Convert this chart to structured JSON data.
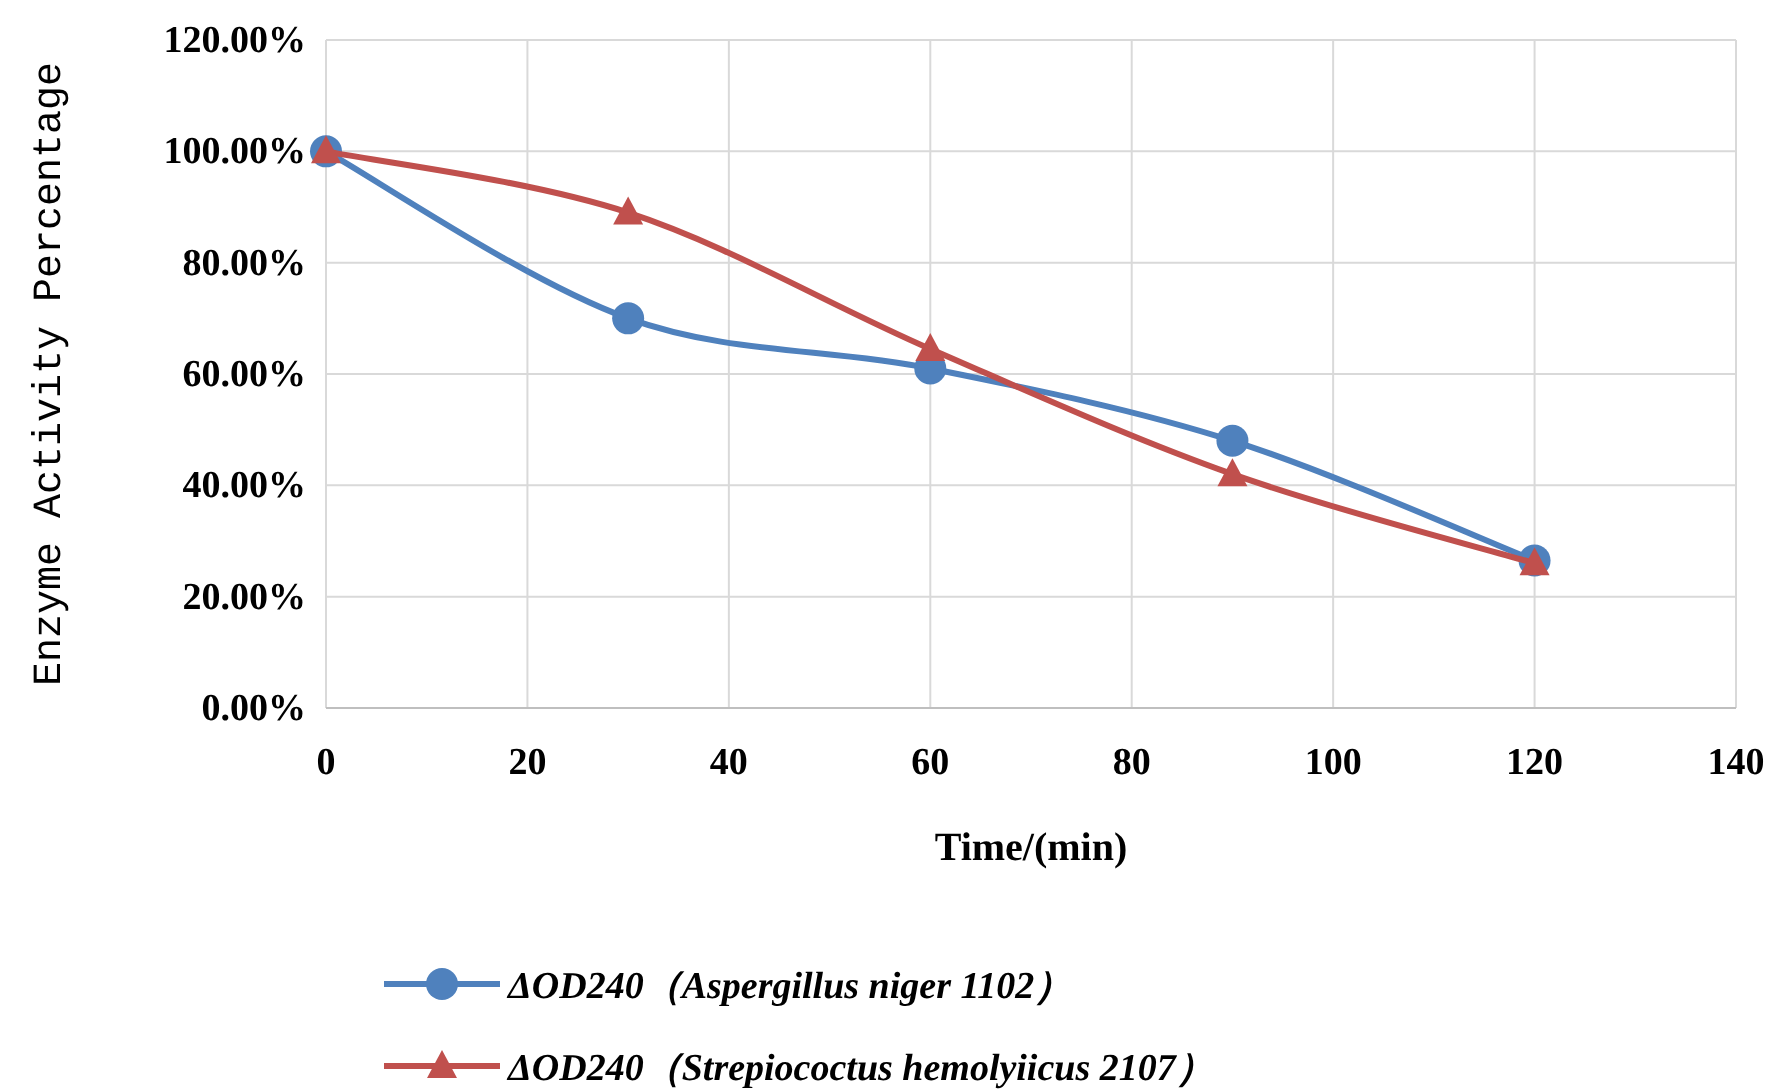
{
  "chart_data": {
    "type": "line",
    "xlabel": "Time/(min)",
    "ylabel": "Enzyme Activity Percentage",
    "x": [
      0,
      30,
      60,
      90,
      120
    ],
    "xlim": [
      0,
      140
    ],
    "xticks": [
      0,
      20,
      40,
      60,
      80,
      100,
      120,
      140
    ],
    "ylim": [
      0,
      120
    ],
    "yticks": [
      {
        "value": 0,
        "label": "0.00%"
      },
      {
        "value": 20,
        "label": "20.00%"
      },
      {
        "value": 40,
        "label": "40.00%"
      },
      {
        "value": 60,
        "label": "60.00%"
      },
      {
        "value": 80,
        "label": "80.00%"
      },
      {
        "value": 100,
        "label": "100.00%"
      },
      {
        "value": 120,
        "label": "120.00%"
      }
    ],
    "grid": true,
    "legend": "bottom",
    "line_style": "solid",
    "series": [
      {
        "name": "ΔOD240（Aspergillus niger 1102）",
        "color": "#4f81bd",
        "marker": "circle",
        "values": [
          100,
          70,
          61,
          48,
          26.5
        ]
      },
      {
        "name": "ΔOD240（Strepiococtus hemolyiicus 2107）",
        "color": "#c0504d",
        "marker": "triangle",
        "values": [
          100,
          89,
          64.5,
          42,
          26
        ]
      }
    ]
  }
}
